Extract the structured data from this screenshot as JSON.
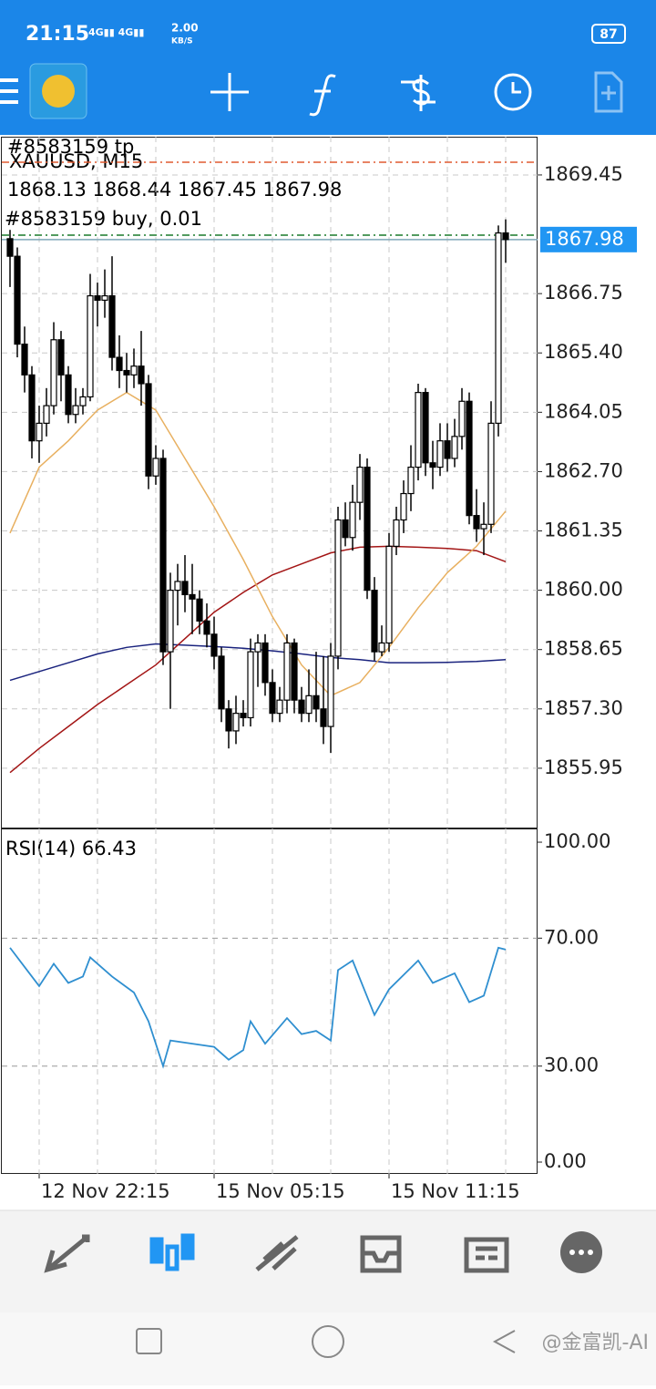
{
  "status_bar": {
    "time": "21:15",
    "speed": "2.00",
    "speed_unit": "KB/S",
    "battery": "87"
  },
  "chart_data": {
    "type": "candlestick",
    "order_tp_label": "#8583159 tp",
    "symbol": "XAUUSD, M15",
    "ohlc_label": "1868.13 1868.44 1867.45 1867.98",
    "order_buy_label": "#8583159 buy, 0.01",
    "tp_price": 1869.74,
    "buy_price": 1868.08,
    "bid_price": 1867.98,
    "bid_label": "1867.98",
    "ylim": [
      1854.6,
      1870.32
    ],
    "yticks": [
      {
        "value": 1869.45,
        "label": "1869.45"
      },
      {
        "value": 1866.75,
        "label": "1866.75"
      },
      {
        "value": 1865.4,
        "label": "1865.40"
      },
      {
        "value": 1864.05,
        "label": "1864.05"
      },
      {
        "value": 1862.7,
        "label": "1862.70"
      },
      {
        "value": 1861.35,
        "label": "1861.35"
      },
      {
        "value": 1860.0,
        "label": "1860.00"
      },
      {
        "value": 1858.65,
        "label": "1858.65"
      },
      {
        "value": 1857.3,
        "label": "1857.30"
      },
      {
        "value": 1855.95,
        "label": "1855.95"
      }
    ],
    "grid": true,
    "up_color": "#ffffff",
    "down_color": "#000000",
    "candles": [
      [
        1868.0,
        1868.2,
        1866.9,
        1867.6
      ],
      [
        1867.6,
        1867.8,
        1865.3,
        1865.6
      ],
      [
        1865.6,
        1866.0,
        1864.5,
        1864.9
      ],
      [
        1864.9,
        1865.1,
        1863.0,
        1863.4
      ],
      [
        1863.4,
        1864.2,
        1862.9,
        1863.8
      ],
      [
        1863.8,
        1864.6,
        1863.5,
        1864.2
      ],
      [
        1864.2,
        1866.1,
        1864.0,
        1865.7
      ],
      [
        1865.7,
        1865.9,
        1864.3,
        1864.9
      ],
      [
        1864.9,
        1865.1,
        1863.8,
        1864.0
      ],
      [
        1864.0,
        1864.6,
        1863.8,
        1864.2
      ],
      [
        1864.2,
        1864.6,
        1864.0,
        1864.4
      ],
      [
        1864.4,
        1867.2,
        1864.3,
        1866.7
      ],
      [
        1866.7,
        1867.0,
        1866.0,
        1866.6
      ],
      [
        1866.6,
        1867.3,
        1866.2,
        1866.7
      ],
      [
        1866.7,
        1867.6,
        1865.0,
        1865.3
      ],
      [
        1865.3,
        1865.8,
        1864.6,
        1865.0
      ],
      [
        1865.0,
        1865.4,
        1864.5,
        1864.9
      ],
      [
        1864.9,
        1865.5,
        1864.6,
        1865.1
      ],
      [
        1865.1,
        1865.9,
        1864.2,
        1864.7
      ],
      [
        1864.7,
        1864.9,
        1862.3,
        1862.6
      ],
      [
        1862.6,
        1863.3,
        1862.4,
        1863.0
      ],
      [
        1863.0,
        1863.2,
        1858.3,
        1858.6
      ],
      [
        1858.6,
        1860.4,
        1857.3,
        1860.0
      ],
      [
        1860.0,
        1860.6,
        1859.2,
        1860.2
      ],
      [
        1860.2,
        1860.8,
        1859.5,
        1859.9
      ],
      [
        1859.9,
        1860.6,
        1859.0,
        1859.8
      ],
      [
        1859.8,
        1860.0,
        1859.0,
        1859.3
      ],
      [
        1859.3,
        1859.7,
        1858.7,
        1859.0
      ],
      [
        1859.0,
        1859.4,
        1858.2,
        1858.5
      ],
      [
        1858.5,
        1858.7,
        1857.0,
        1857.3
      ],
      [
        1857.3,
        1857.5,
        1856.4,
        1856.8
      ],
      [
        1856.8,
        1857.6,
        1856.5,
        1857.2
      ],
      [
        1857.2,
        1857.5,
        1856.9,
        1857.1
      ],
      [
        1857.1,
        1858.9,
        1856.9,
        1858.6
      ],
      [
        1858.6,
        1859.0,
        1857.8,
        1858.8
      ],
      [
        1858.8,
        1859.0,
        1857.6,
        1857.9
      ],
      [
        1857.9,
        1858.2,
        1857.0,
        1857.2
      ],
      [
        1857.2,
        1857.8,
        1857.0,
        1857.5
      ],
      [
        1857.5,
        1859.0,
        1857.2,
        1858.8
      ],
      [
        1858.8,
        1858.9,
        1857.2,
        1857.5
      ],
      [
        1857.5,
        1857.8,
        1857.0,
        1857.2
      ],
      [
        1857.2,
        1858.2,
        1857.0,
        1857.6
      ],
      [
        1857.6,
        1858.6,
        1857.0,
        1857.3
      ],
      [
        1857.3,
        1858.5,
        1856.5,
        1856.9
      ],
      [
        1856.9,
        1858.8,
        1856.3,
        1858.5
      ],
      [
        1858.5,
        1861.9,
        1858.2,
        1861.6
      ],
      [
        1861.6,
        1862.0,
        1861.0,
        1861.2
      ],
      [
        1861.2,
        1862.4,
        1860.9,
        1862.0
      ],
      [
        1862.0,
        1863.1,
        1861.6,
        1862.8
      ],
      [
        1862.8,
        1863.0,
        1859.8,
        1860.0
      ],
      [
        1860.0,
        1860.3,
        1858.4,
        1858.6
      ],
      [
        1858.6,
        1859.2,
        1858.5,
        1858.8
      ],
      [
        1858.8,
        1861.3,
        1858.6,
        1861.0
      ],
      [
        1861.0,
        1861.9,
        1860.8,
        1861.6
      ],
      [
        1861.6,
        1862.5,
        1861.3,
        1862.2
      ],
      [
        1862.2,
        1863.3,
        1861.8,
        1862.8
      ],
      [
        1862.8,
        1864.7,
        1862.5,
        1864.5
      ],
      [
        1864.5,
        1864.6,
        1862.6,
        1862.9
      ],
      [
        1862.9,
        1863.4,
        1862.3,
        1862.8
      ],
      [
        1862.8,
        1863.8,
        1862.6,
        1863.4
      ],
      [
        1863.4,
        1863.8,
        1862.7,
        1863.0
      ],
      [
        1863.0,
        1863.9,
        1862.8,
        1863.5
      ],
      [
        1863.5,
        1864.6,
        1863.2,
        1864.3
      ],
      [
        1864.3,
        1864.5,
        1861.5,
        1861.7
      ],
      [
        1861.7,
        1862.3,
        1861.1,
        1861.4
      ],
      [
        1861.4,
        1862.0,
        1860.8,
        1861.5
      ],
      [
        1861.5,
        1864.3,
        1861.3,
        1863.8
      ],
      [
        1863.8,
        1868.3,
        1863.5,
        1868.13
      ],
      [
        1868.13,
        1868.44,
        1867.45,
        1867.98
      ]
    ],
    "ma_x": [
      0,
      4,
      8,
      12,
      16,
      20,
      24,
      28,
      32,
      36,
      40,
      44,
      48,
      52,
      56,
      60,
      64,
      68
    ],
    "series": [
      {
        "color": "#1a237e",
        "values": [
          1857.95,
          1858.15,
          1858.35,
          1858.55,
          1858.7,
          1858.78,
          1858.75,
          1858.72,
          1858.68,
          1858.62,
          1858.55,
          1858.47,
          1858.42,
          1858.35,
          1858.35,
          1858.36,
          1858.38,
          1858.42
        ]
      },
      {
        "color": "#a31515",
        "values": [
          1855.85,
          1856.4,
          1856.9,
          1857.4,
          1857.85,
          1858.3,
          1858.9,
          1859.5,
          1859.95,
          1860.35,
          1860.6,
          1860.85,
          1860.98,
          1861.0,
          1860.98,
          1860.95,
          1860.9,
          1860.65
        ]
      },
      {
        "color": "#e8b060",
        "values": [
          1861.3,
          1862.8,
          1863.4,
          1864.1,
          1864.5,
          1864.1,
          1863.0,
          1861.9,
          1860.7,
          1859.4,
          1858.3,
          1857.6,
          1857.9,
          1858.7,
          1859.6,
          1860.4,
          1861.0,
          1861.8
        ]
      }
    ],
    "x_labels": [
      "12 Nov 22:15",
      "15 Nov 05:15",
      "15 Nov 11:15"
    ],
    "rsi": {
      "label": "RSI(14) 66.43",
      "color": "#2f8fd0",
      "ylim": [
        -3.7,
        104
      ],
      "yticks": [
        {
          "value": 100,
          "label": "100.00"
        },
        {
          "value": 70,
          "label": "70.00"
        },
        {
          "value": 30,
          "label": "30.00"
        },
        {
          "value": 0,
          "label": "0.00"
        }
      ],
      "levels": [
        70,
        30
      ],
      "x": [
        0,
        2,
        4,
        6,
        8,
        10,
        11,
        14,
        17,
        19,
        21,
        22,
        25,
        28,
        30,
        32,
        33,
        35,
        38,
        40,
        42,
        44,
        45,
        47,
        50,
        52,
        56,
        58,
        61,
        63,
        65,
        67,
        68
      ],
      "values": [
        67,
        61,
        55,
        62,
        56,
        58,
        64,
        58,
        53,
        44,
        30,
        38,
        37,
        36,
        32,
        35,
        44,
        37,
        45,
        40,
        41,
        38,
        60,
        63,
        46,
        54,
        63,
        56,
        59,
        50,
        52,
        67,
        66.43
      ]
    }
  },
  "watermark": "@金富凯-AI"
}
